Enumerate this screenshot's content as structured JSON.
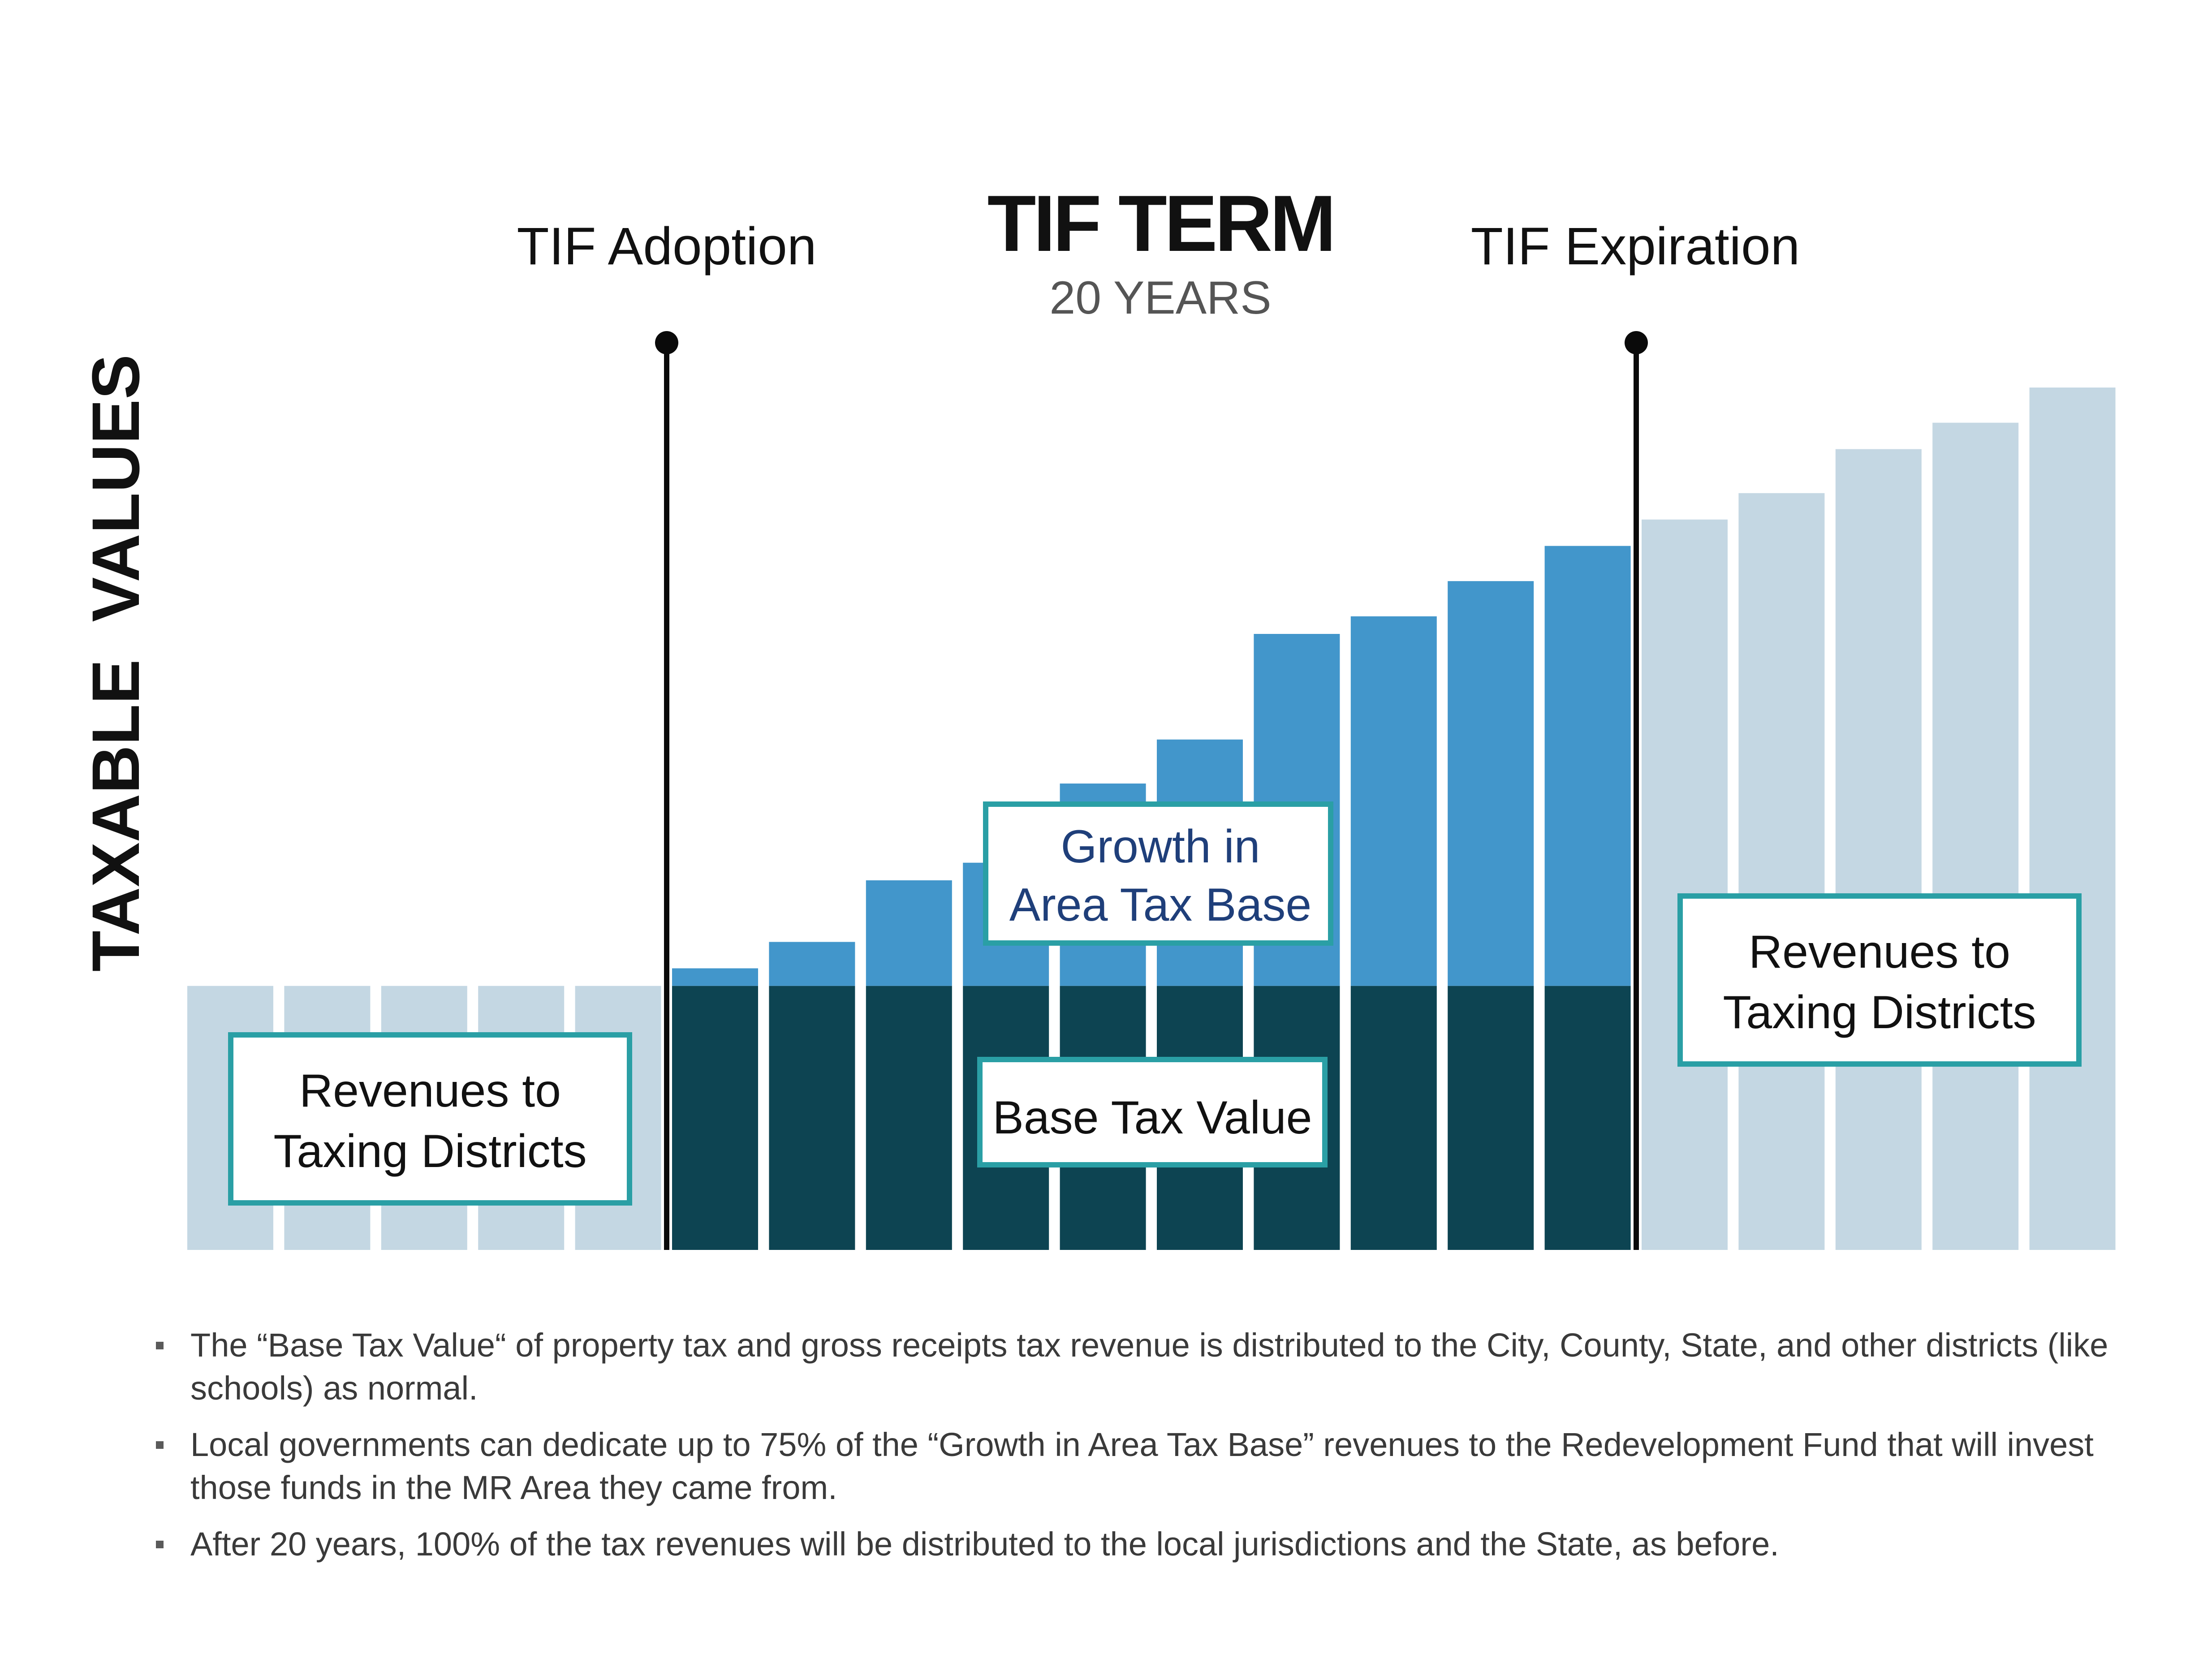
{
  "chart_data": {
    "type": "bar",
    "title": "TIF TERM",
    "subtitle": "20 YEARS",
    "ylabel": "TAXABLE  VALUES",
    "xlabel": "",
    "markers": [
      {
        "label": "TIF Adoption",
        "after_bar": 5
      },
      {
        "label": "TIF Expiration",
        "after_bar": 15
      }
    ],
    "base_value": 30,
    "bars": [
      {
        "period": "pre",
        "value": 30
      },
      {
        "period": "pre",
        "value": 30
      },
      {
        "period": "pre",
        "value": 30
      },
      {
        "period": "pre",
        "value": 30
      },
      {
        "period": "pre",
        "value": 30
      },
      {
        "period": "tif",
        "value": 32
      },
      {
        "period": "tif",
        "value": 35
      },
      {
        "period": "tif",
        "value": 42
      },
      {
        "period": "tif",
        "value": 44
      },
      {
        "period": "tif",
        "value": 53
      },
      {
        "period": "tif",
        "value": 58
      },
      {
        "period": "tif",
        "value": 70
      },
      {
        "period": "tif",
        "value": 72
      },
      {
        "period": "tif",
        "value": 76
      },
      {
        "period": "tif",
        "value": 80
      },
      {
        "period": "post",
        "value": 83
      },
      {
        "period": "post",
        "value": 86
      },
      {
        "period": "post",
        "value": 91
      },
      {
        "period": "post",
        "value": 94
      },
      {
        "period": "post",
        "value": 98
      }
    ],
    "ylim": [
      0,
      100
    ],
    "grid": false,
    "colors": {
      "pre_post": "#c4d7e3",
      "base": "#0d4452",
      "growth": "#4296cb",
      "box_border": "#2a9fa5",
      "growth_label": "#1f3f7a"
    },
    "annotations": {
      "pre_revenues": [
        "Revenues to",
        "Taxing Districts"
      ],
      "growth": [
        "Growth in",
        "Area Tax Base"
      ],
      "base": "Base Tax Value",
      "post_revenues": [
        "Revenues to",
        "Taxing Districts"
      ]
    }
  },
  "notes": [
    "The  “Base Tax Value“ of property tax and gross receipts tax revenue is distributed to the City, County, State, and other districts (like schools) as normal.",
    "Local governments can dedicate up to 75% of the  “Growth in Area Tax Base” revenues to the Redevelopment Fund that will invest those funds in the MR Area they came from.",
    "After 20 years, 100% of the tax revenues will be distributed to the local jurisdictions and the State, as before."
  ]
}
